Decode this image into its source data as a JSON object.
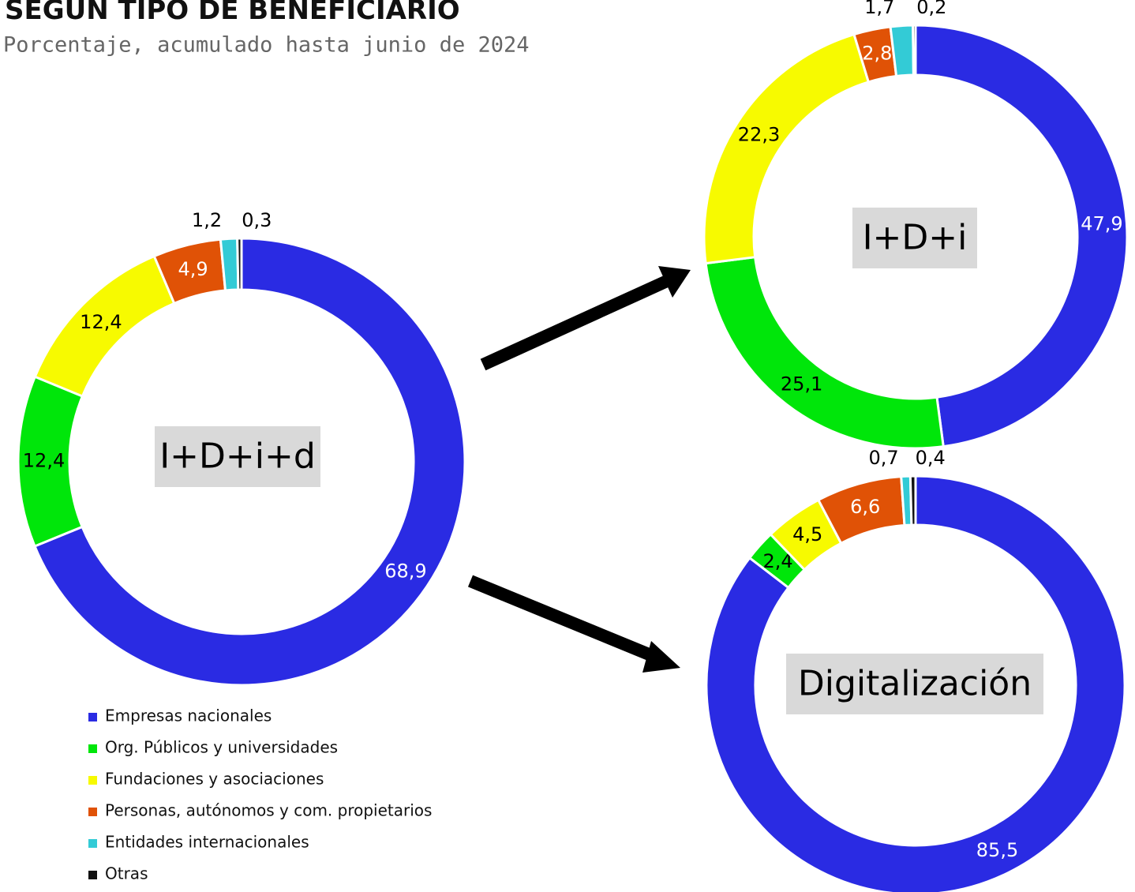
{
  "title": "SEGÚN TIPO DE BENEFICIARIO",
  "subtitle": "Porcentaje, acumulado hasta junio de 2024",
  "categories": [
    "Empresas nacionales",
    "Org. Públicos y universidades",
    "Fundaciones y asociaciones",
    "Personas, autónomos y com. propietarios",
    "Entidades internacionales",
    "Otras"
  ],
  "colors": [
    "#2a2be3",
    "#00e60a",
    "#f7fa00",
    "#e05206",
    "#33cbd6",
    "#111111"
  ],
  "chart_data": [
    {
      "type": "pie",
      "center_label": "I+D+i+d",
      "values": [
        68.9,
        12.4,
        12.4,
        4.9,
        1.2,
        0.3
      ],
      "value_labels": [
        "68,9",
        "12,4",
        "12,4",
        "4,9",
        "1,2",
        "0,3"
      ]
    },
    {
      "type": "pie",
      "center_label": "I+D+i",
      "values": [
        47.9,
        25.1,
        22.3,
        2.8,
        1.7,
        0.2
      ],
      "value_labels": [
        "47,9",
        "25,1",
        "22,3",
        "2,8",
        "1,7",
        "0,2"
      ]
    },
    {
      "type": "pie",
      "center_label": "Digitalización",
      "values": [
        85.5,
        2.4,
        4.5,
        6.6,
        0.7,
        0.4
      ],
      "value_labels": [
        "85,5",
        "2,4",
        "4,5",
        "6,6",
        "0,7",
        "0,4"
      ]
    }
  ]
}
